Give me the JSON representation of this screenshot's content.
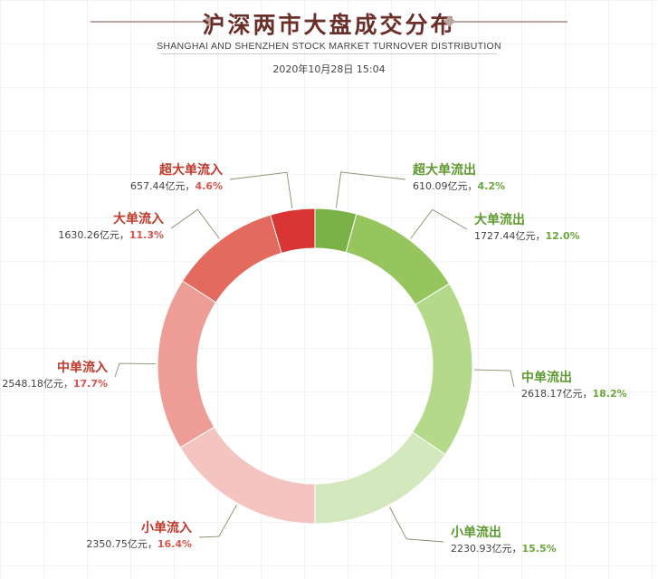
{
  "header": {
    "title": "沪深两市大盘成交分布",
    "subtitle": "SHANGHAI AND SHENZHEN STOCK MARKET TURNOVER DISTRIBUTION",
    "timestamp": "2020年10月28日 15:04"
  },
  "chart_data": {
    "type": "pie",
    "style": "donut",
    "unit": "亿元",
    "slices": [
      {
        "name": "超大单流出",
        "value": 610.09,
        "value_text": "610.09亿元",
        "percent_text": "4.2%",
        "color": "#7ab247"
      },
      {
        "name": "大单流出",
        "value": 1727.44,
        "value_text": "1727.44亿元",
        "percent_text": "12.0%",
        "color": "#95c55c"
      },
      {
        "name": "中单流出",
        "value": 2618.17,
        "value_text": "2618.17亿元",
        "percent_text": "18.2%",
        "color": "#b5d98a"
      },
      {
        "name": "小单流出",
        "value": 2230.93,
        "value_text": "2230.93亿元",
        "percent_text": "15.5%",
        "color": "#d3e8bd"
      },
      {
        "name": "小单流入",
        "value": 2350.75,
        "value_text": "2350.75亿元",
        "percent_text": "16.4%",
        "color": "#f3c4c0"
      },
      {
        "name": "中单流入",
        "value": 2548.18,
        "value_text": "2548.18亿元",
        "percent_text": "17.7%",
        "color": "#ed9d95"
      },
      {
        "name": "大单流入",
        "value": 1630.26,
        "value_text": "1630.26亿元",
        "percent_text": "11.3%",
        "color": "#e36a5c"
      },
      {
        "name": "超大单流入",
        "value": 657.44,
        "value_text": "657.44亿元",
        "percent_text": "4.6%",
        "color": "#d93535"
      }
    ],
    "label_colors": {
      "outflow_name": "#5e9a2f",
      "outflow_pct": "#6aa63a",
      "inflow_name": "#c0392b",
      "inflow_pct": "#d9534f"
    }
  }
}
